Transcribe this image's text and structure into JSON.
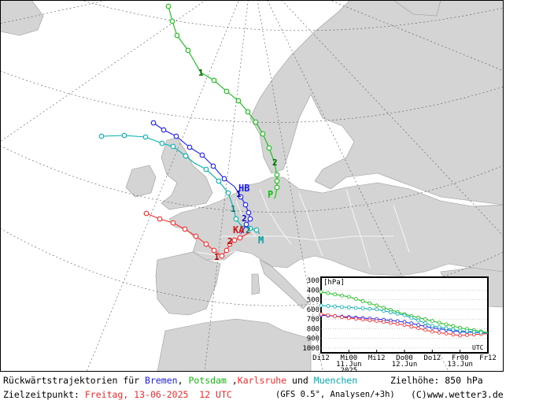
{
  "map": {
    "city_labels": [
      {
        "id": "bremen",
        "text": "HB",
        "color": "#1a1aff"
      },
      {
        "id": "potsdam",
        "text": "P",
        "color": "#10c010"
      },
      {
        "id": "karlsruhe",
        "text": "KA",
        "color": "#cc1111"
      },
      {
        "id": "muenchen",
        "text": "M",
        "color": "#009a9a"
      }
    ]
  },
  "chart_data": {
    "type": "line",
    "ylabel": "[hPa]",
    "y_ticks": [
      "300",
      "400",
      "500",
      "600",
      "700",
      "800",
      "900",
      "1000"
    ],
    "ylim": [
      1000,
      300
    ],
    "x_ticks": [
      "Di12",
      "Mi00",
      "Mi12",
      "Do00",
      "Do12",
      "Fr00",
      "Fr12"
    ],
    "x_sub_labels": [
      "11.Jun",
      "12.Jun",
      "13.Jun"
    ],
    "year_label": "2025",
    "unit_label": "UTC",
    "x": [
      0,
      12,
      24,
      36,
      48,
      60,
      72
    ],
    "series": [
      {
        "name": "Bremen",
        "color": "#1a1aff",
        "values": [
          660,
          680,
          700,
          730,
          790,
          830,
          845
        ]
      },
      {
        "name": "Potsdam",
        "color": "#10c010",
        "values": [
          420,
          470,
          560,
          650,
          720,
          790,
          840
        ]
      },
      {
        "name": "Karlsruhe",
        "color": "#ff2a2a",
        "values": [
          650,
          690,
          720,
          760,
          830,
          870,
          850
        ]
      },
      {
        "name": "Muenchen",
        "color": "#00b0b0",
        "values": [
          560,
          580,
          600,
          660,
          770,
          820,
          845
        ]
      }
    ]
  },
  "caption": {
    "prefix": "Rückwärtstrajektorien für",
    "bremen": "Bremen",
    "comma1": ",",
    "potsdam": "Potsdam",
    "comma2": ",",
    "karlsruhe": "Karlsruhe",
    "und": "und",
    "muenchen": "Muenchen",
    "zielhoehe_label": "Zielhöhe:",
    "zielhoehe_value": "850 hPa",
    "zielzeit_label": "Zielzeitpunkt:",
    "zielzeit_value": "Freitag, 13-06-2025  12 UTC",
    "model": "(GFS 0.5°, Analysen/+3h)",
    "copyright": "(C)www.wetter3.de"
  }
}
